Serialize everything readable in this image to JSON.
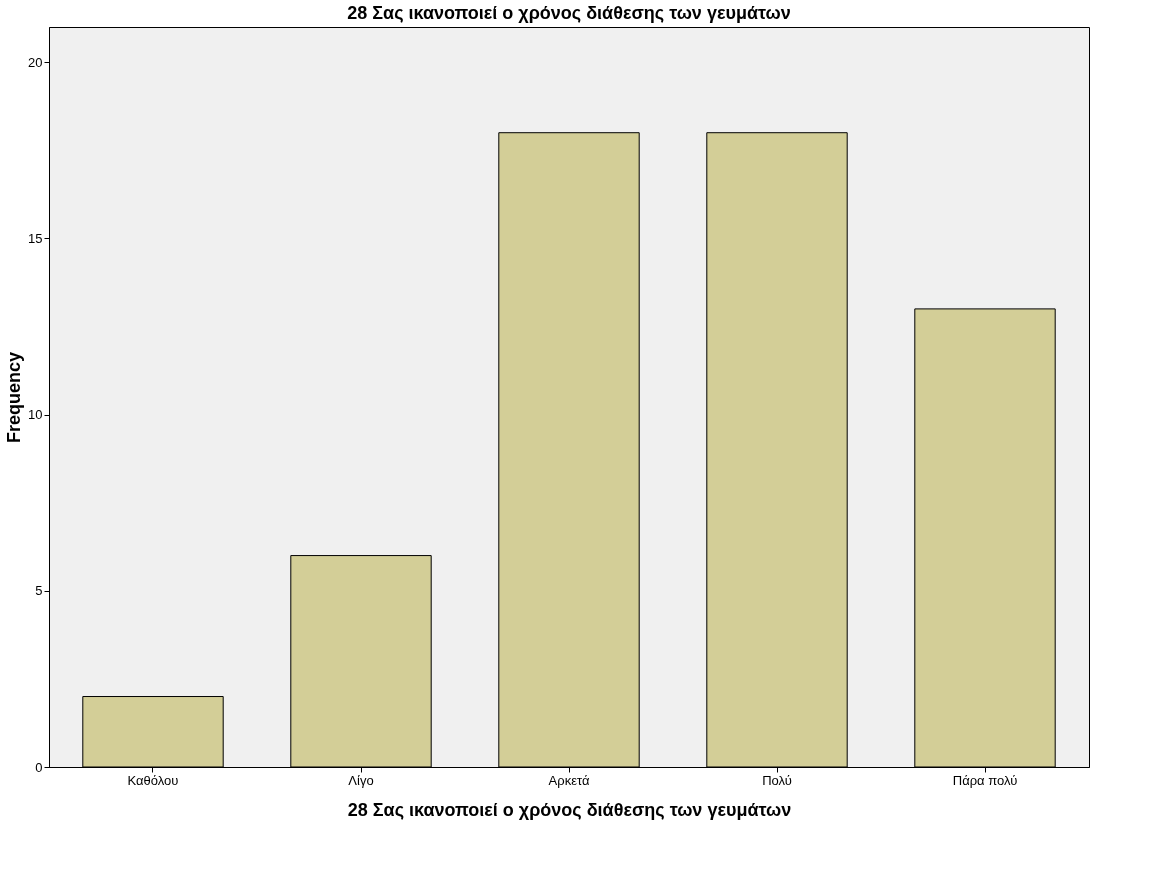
{
  "chart_data": {
    "type": "bar",
    "title": "28 Σας ικανοποιεί ο χρόνος διάθεσης των γευμάτων",
    "xlabel": "28 Σας ικανοποιεί ο χρόνος διάθεσης των γευμάτων",
    "ylabel": "Frequency",
    "categories": [
      "Καθόλου",
      "Λίγο",
      "Αρκετά",
      "Πολύ",
      "Πάρα πολύ"
    ],
    "values": [
      2,
      6,
      18,
      18,
      13
    ],
    "color": "#d3ce97",
    "ylim": [
      0,
      21
    ],
    "yticks": [
      0,
      5,
      10,
      15,
      20
    ],
    "grid": false
  }
}
